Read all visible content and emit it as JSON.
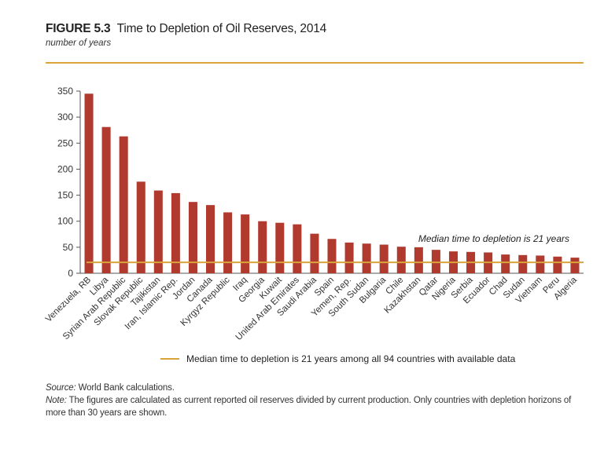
{
  "figure": {
    "label": "FIGURE 5.3",
    "title": "Time to Depletion of Oil Reserves, 2014",
    "subtitle": "number of years"
  },
  "legend": {
    "text": "Median time to depletion is 21 years among all 94 countries with available data"
  },
  "notes": {
    "source_label": "Source:",
    "source_text": " World Bank calculations.",
    "note_label": "Note:",
    "note_text": " The figures are calculated as current reported oil reserves divided by current production. Only countries with depletion horizons of more than 30 years are shown."
  },
  "chart_data": {
    "type": "bar",
    "title": "Time to Depletion of Oil Reserves, 2014",
    "ylabel": "number of years",
    "xlabel": "",
    "ylim": [
      0,
      350
    ],
    "yticks": [
      0,
      50,
      100,
      150,
      200,
      250,
      300,
      350
    ],
    "grid": false,
    "bar_color": "#b03a2e",
    "categories": [
      "Venezuela, RB",
      "Libya",
      "Syrian Arab Republic",
      "Slovak Republic",
      "Tajikistan",
      "Iran, Islamic Rep.",
      "Jordan",
      "Canada",
      "Kyrgyz Republic",
      "Iraq",
      "Georgia",
      "Kuwait",
      "United Arab Emirates",
      "Saudi Arabia",
      "Spain",
      "Yemen, Rep.",
      "South Sudan",
      "Bulgaria",
      "Chile",
      "Kazakhstan",
      "Qatar",
      "Nigeria",
      "Serbia",
      "Ecuador",
      "Chad",
      "Sudan",
      "Vietnam",
      "Peru",
      "Algeria"
    ],
    "values": [
      345,
      281,
      263,
      176,
      159,
      154,
      137,
      131,
      117,
      113,
      100,
      97,
      94,
      76,
      66,
      59,
      57,
      55,
      51,
      50,
      45,
      42,
      41,
      40,
      36,
      35,
      34,
      32,
      30
    ],
    "reference_line": {
      "value": 21,
      "color": "#d9a53b",
      "label": "Median time to depletion is 21 years"
    }
  }
}
